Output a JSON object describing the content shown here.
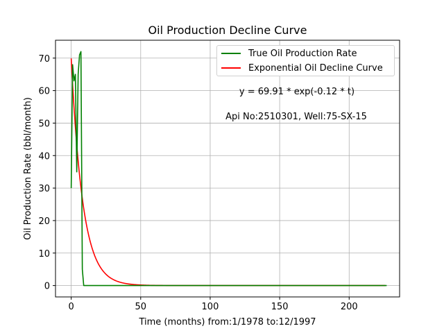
{
  "chart_data": {
    "type": "line",
    "title": "Oil Production Decline Curve",
    "xlabel": "Time (months) from:1/1978 to:12/1997",
    "ylabel": "Oil Production Rate (bbl/month)",
    "xlim": [
      -11.3,
      236.3
    ],
    "ylim": [
      -3.5,
      75.5
    ],
    "xticks": [
      0,
      50,
      100,
      150,
      200
    ],
    "yticks": [
      0,
      10,
      20,
      30,
      40,
      50,
      60,
      70
    ],
    "grid": true,
    "legend_position": "top-right",
    "annotations": [
      "y = 69.91 * exp(-0.12 * t)",
      "Api No:2510301, Well:75-SX-15"
    ],
    "series": [
      {
        "name": "True Oil Production Rate",
        "color": "#008000",
        "x": [
          0,
          1,
          2,
          3,
          4,
          5,
          6,
          7,
          8,
          9,
          10,
          11,
          12,
          20,
          50,
          100,
          150,
          200,
          227
        ],
        "y": [
          30,
          68,
          63,
          65,
          35,
          65,
          71,
          72,
          5,
          0,
          0,
          0,
          0,
          0,
          0,
          0,
          0,
          0,
          0
        ]
      },
      {
        "name": "Exponential Oil Decline Curve",
        "color": "#ff0000",
        "model": {
          "a": 69.91,
          "b": 0.12,
          "x_start": 0,
          "x_end": 226
        }
      }
    ]
  }
}
